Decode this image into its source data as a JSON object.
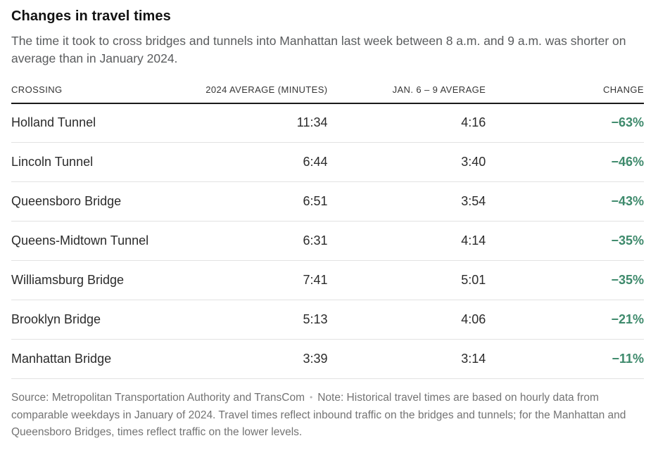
{
  "colors": {
    "title_text": "#121212",
    "subtitle_text": "#5a5c5e",
    "header_text": "#363636",
    "row_text": "#2b2b2b",
    "change_green": "#3e8a6c",
    "rule_dark": "#1a1a1a",
    "rule_light": "#e2e2e2",
    "footer_text": "#737373",
    "background": "#ffffff"
  },
  "header": {
    "title": "Changes in travel times",
    "subtitle": "The time it took to cross bridges and tunnels into Manhattan last week between 8 a.m. and 9 a.m. was shorter on average than in January 2024."
  },
  "table": {
    "columns": [
      "CROSSING",
      "2024 AVERAGE (MINUTES)",
      "JAN. 6 – 9 AVERAGE",
      "CHANGE"
    ],
    "rows": [
      {
        "crossing": "Holland Tunnel",
        "avg2024": "11:34",
        "jan69": "4:16",
        "change": "−63%"
      },
      {
        "crossing": "Lincoln Tunnel",
        "avg2024": "6:44",
        "jan69": "3:40",
        "change": "−46%"
      },
      {
        "crossing": "Queensboro Bridge",
        "avg2024": "6:51",
        "jan69": "3:54",
        "change": "−43%"
      },
      {
        "crossing": "Queens-Midtown Tunnel",
        "avg2024": "6:31",
        "jan69": "4:14",
        "change": "−35%"
      },
      {
        "crossing": "Williamsburg Bridge",
        "avg2024": "7:41",
        "jan69": "5:01",
        "change": "−35%"
      },
      {
        "crossing": "Brooklyn Bridge",
        "avg2024": "5:13",
        "jan69": "4:06",
        "change": "−21%"
      },
      {
        "crossing": "Manhattan Bridge",
        "avg2024": "3:39",
        "jan69": "3:14",
        "change": "−11%"
      }
    ]
  },
  "footer": {
    "source": "Source: Metropolitan Transportation Authority and TransCom",
    "separator": "•",
    "note": "Note: Historical travel times are based on hourly data from comparable weekdays in January of 2024. Travel times reflect inbound traffic on the bridges and tunnels; for the Manhattan and Queensboro Bridges, times reflect traffic on the lower levels."
  },
  "chart_data": {
    "type": "table",
    "title": "Changes in travel times",
    "subtitle": "The time it took to cross bridges and tunnels into Manhattan last week between 8 a.m. and 9 a.m. was shorter on average than in January 2024.",
    "columns": [
      "CROSSING",
      "2024 AVERAGE (MINUTES)",
      "JAN. 6 – 9 AVERAGE",
      "CHANGE"
    ],
    "rows": [
      [
        "Holland Tunnel",
        "11:34",
        "4:16",
        "−63%"
      ],
      [
        "Lincoln Tunnel",
        "6:44",
        "3:40",
        "−46%"
      ],
      [
        "Queensboro Bridge",
        "6:51",
        "3:54",
        "−43%"
      ],
      [
        "Queens-Midtown Tunnel",
        "6:31",
        "4:14",
        "−35%"
      ],
      [
        "Williamsburg Bridge",
        "7:41",
        "5:01",
        "−35%"
      ],
      [
        "Brooklyn Bridge",
        "5:13",
        "4:06",
        "−21%"
      ],
      [
        "Manhattan Bridge",
        "3:39",
        "3:14",
        "−11%"
      ]
    ],
    "change_percent_numeric": [
      -63,
      -46,
      -43,
      -35,
      -35,
      -21,
      -11
    ],
    "layout_hints": {
      "value_columns_alignment": "right",
      "change_column_color": "#3e8a6c",
      "header_rule": "dark",
      "row_rules": "light"
    }
  }
}
